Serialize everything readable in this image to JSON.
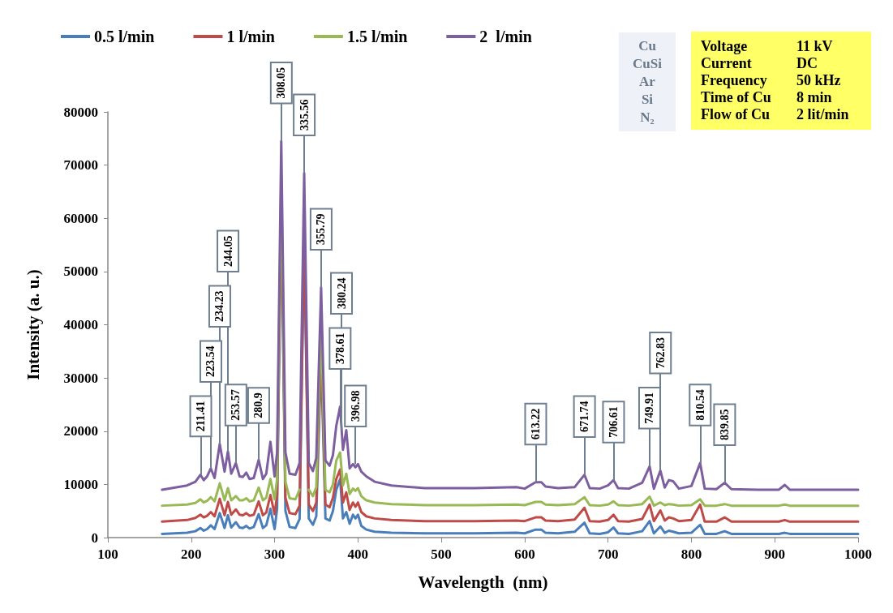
{
  "chart_data": {
    "type": "line",
    "xlabel": "Wavelength  (nm)",
    "ylabel": "Intensity (a. u.)",
    "x": [
      165,
      195,
      205,
      211,
      215,
      219,
      223.5,
      228,
      234.2,
      240,
      244,
      248,
      253.5,
      258,
      262,
      266,
      270,
      275,
      280.9,
      286,
      290,
      295,
      300,
      303,
      308,
      313,
      318,
      325,
      330,
      335.5,
      341,
      346,
      350,
      355.8,
      361,
      366,
      370,
      374,
      378.6,
      382,
      386,
      390,
      394,
      397,
      400,
      404,
      410,
      420,
      440,
      480,
      540,
      590,
      600,
      613,
      620,
      625,
      640,
      660,
      671.7,
      678,
      690,
      700,
      706.6,
      712,
      725,
      741,
      749.9,
      755,
      762.8,
      768,
      773,
      778,
      785,
      800,
      810.5,
      816,
      830,
      839.9,
      848,
      880,
      905,
      912,
      918,
      960,
      1000
    ],
    "series": [
      {
        "name": "0.5 l/min",
        "color": "#4a7ebb",
        "values": [
          700,
          900,
          1200,
          1800,
          1300,
          1600,
          2300,
          1600,
          4600,
          1800,
          4200,
          1900,
          2900,
          1900,
          1800,
          2200,
          1700,
          2000,
          4400,
          1800,
          2300,
          5400,
          1600,
          5400,
          62000,
          5000,
          2000,
          1800,
          3500,
          56000,
          3600,
          2400,
          4000,
          34000,
          3600,
          3200,
          5000,
          9000,
          11000,
          3600,
          4800,
          2600,
          4300,
          3600,
          4300,
          2200,
          1500,
          1100,
          900,
          800,
          800,
          900,
          800,
          1500,
          1500,
          900,
          800,
          1100,
          2800,
          800,
          700,
          1000,
          1900,
          800,
          700,
          1200,
          3100,
          800,
          2100,
          900,
          1300,
          1100,
          800,
          900,
          2400,
          700,
          700,
          1200,
          700,
          700,
          700,
          900,
          700,
          700,
          700
        ]
      },
      {
        "name": "1 l/min",
        "color": "#be4b48",
        "values": [
          3000,
          3300,
          3700,
          4300,
          3800,
          4100,
          4800,
          4000,
          7300,
          4200,
          6700,
          4300,
          5300,
          4300,
          4200,
          4600,
          4100,
          4300,
          6800,
          4200,
          4700,
          8000,
          4400,
          8000,
          64000,
          7500,
          4600,
          4400,
          6000,
          58000,
          6200,
          5000,
          6600,
          36000,
          6200,
          5700,
          7500,
          11000,
          12800,
          6600,
          8500,
          5200,
          6600,
          5800,
          6600,
          4800,
          4000,
          3600,
          3300,
          3100,
          3100,
          3200,
          3100,
          3800,
          3800,
          3200,
          3100,
          3400,
          5600,
          3100,
          3000,
          3300,
          4300,
          3100,
          3000,
          3500,
          6200,
          3100,
          5100,
          3200,
          3800,
          3600,
          3100,
          3300,
          6200,
          3000,
          3000,
          3800,
          3000,
          3000,
          3000,
          3300,
          3000,
          3000,
          3000
        ]
      },
      {
        "name": "1.5 l/min",
        "color": "#98b954",
        "values": [
          6000,
          6200,
          6500,
          7200,
          6600,
          6900,
          7600,
          6800,
          10200,
          7000,
          9300,
          7000,
          7800,
          7000,
          7000,
          7400,
          6800,
          7000,
          9400,
          7000,
          7500,
          11000,
          7200,
          11000,
          68000,
          10500,
          7400,
          7200,
          9000,
          null,
          9000,
          7800,
          9500,
          40000,
          9000,
          8500,
          10000,
          14500,
          16000,
          9800,
          12000,
          8200,
          9200,
          8800,
          9300,
          7800,
          7000,
          6600,
          6300,
          6100,
          6100,
          6200,
          6100,
          6700,
          6700,
          6200,
          6100,
          6300,
          7600,
          6100,
          6000,
          6200,
          6800,
          6100,
          6000,
          6300,
          7700,
          6000,
          6600,
          6100,
          6300,
          6200,
          6000,
          6100,
          7200,
          6000,
          6000,
          6300,
          6000,
          6000,
          6000,
          6200,
          6000,
          6000,
          6000
        ]
      },
      {
        "name": "2  l/min",
        "color": "#7d5fa0",
        "values": [
          9000,
          9800,
          10500,
          11800,
          10800,
          11500,
          13000,
          11200,
          17600,
          12400,
          16200,
          12000,
          14000,
          11500,
          11400,
          12200,
          11000,
          11200,
          14600,
          11000,
          12000,
          18000,
          11500,
          16000,
          74500,
          16000,
          12000,
          11800,
          14000,
          68500,
          14000,
          12500,
          15000,
          47000,
          14500,
          13500,
          15500,
          21000,
          24600,
          16500,
          20200,
          13000,
          13800,
          13200,
          13800,
          12400,
          11500,
          10500,
          9800,
          9300,
          9300,
          9500,
          9200,
          10400,
          10400,
          9600,
          9300,
          9500,
          11800,
          9300,
          9200,
          9800,
          10800,
          9300,
          9200,
          10300,
          13400,
          9200,
          12600,
          9400,
          10800,
          10600,
          9200,
          9700,
          14000,
          9200,
          9100,
          10300,
          9100,
          9000,
          9000,
          9900,
          9000,
          9000,
          9000
        ]
      }
    ],
    "xlim": [
      100,
      1000
    ],
    "xticks": [
      100,
      200,
      300,
      400,
      500,
      600,
      700,
      800,
      900,
      1000
    ],
    "ylim": [
      0,
      80000
    ],
    "yticks": [
      0,
      10000,
      20000,
      30000,
      40000,
      50000,
      60000,
      70000,
      80000
    ],
    "grid": false,
    "legend": "top left",
    "marker": "none",
    "line_style": "solid",
    "annotations": [
      {
        "text": "211.41",
        "x": 211.41,
        "y": 11800
      },
      {
        "text": "223.54",
        "x": 223.54,
        "y": 13000
      },
      {
        "text": "234.23",
        "x": 234.23,
        "y": 17600
      },
      {
        "text": "244.05",
        "x": 244.05,
        "y": 16200
      },
      {
        "text": "253.57",
        "x": 253.57,
        "y": 14000
      },
      {
        "text": "280.9",
        "x": 280.9,
        "y": 14600
      },
      {
        "text": "308.05",
        "x": 308.05,
        "y": 74500
      },
      {
        "text": "335.56",
        "x": 335.56,
        "y": 68500
      },
      {
        "text": "355.79",
        "x": 355.79,
        "y": 47000
      },
      {
        "text": "378.61",
        "x": 378.61,
        "y": 24600
      },
      {
        "text": "380.24",
        "x": 380.24,
        "y": 20200
      },
      {
        "text": "396.98",
        "x": 396.98,
        "y": 13800
      },
      {
        "text": "613.22",
        "x": 613.22,
        "y": 10400
      },
      {
        "text": "671.74",
        "x": 671.74,
        "y": 11800
      },
      {
        "text": "706.61",
        "x": 706.61,
        "y": 10800
      },
      {
        "text": "749.91",
        "x": 749.91,
        "y": 13400
      },
      {
        "text": "762.83",
        "x": 762.83,
        "y": 12600
      },
      {
        "text": "810.54",
        "x": 810.54,
        "y": 14000
      },
      {
        "text": "839.85",
        "x": 839.85,
        "y": 10300
      },
      "Cu",
      "CuSi",
      "Ar",
      "Si",
      "N₂",
      "Voltage\t11  kV",
      "Current\tDC",
      "Frequency\t50 kHz",
      "Time of Cu\t8  min",
      "Flow of Cu\t2 lit/min"
    ]
  }
}
